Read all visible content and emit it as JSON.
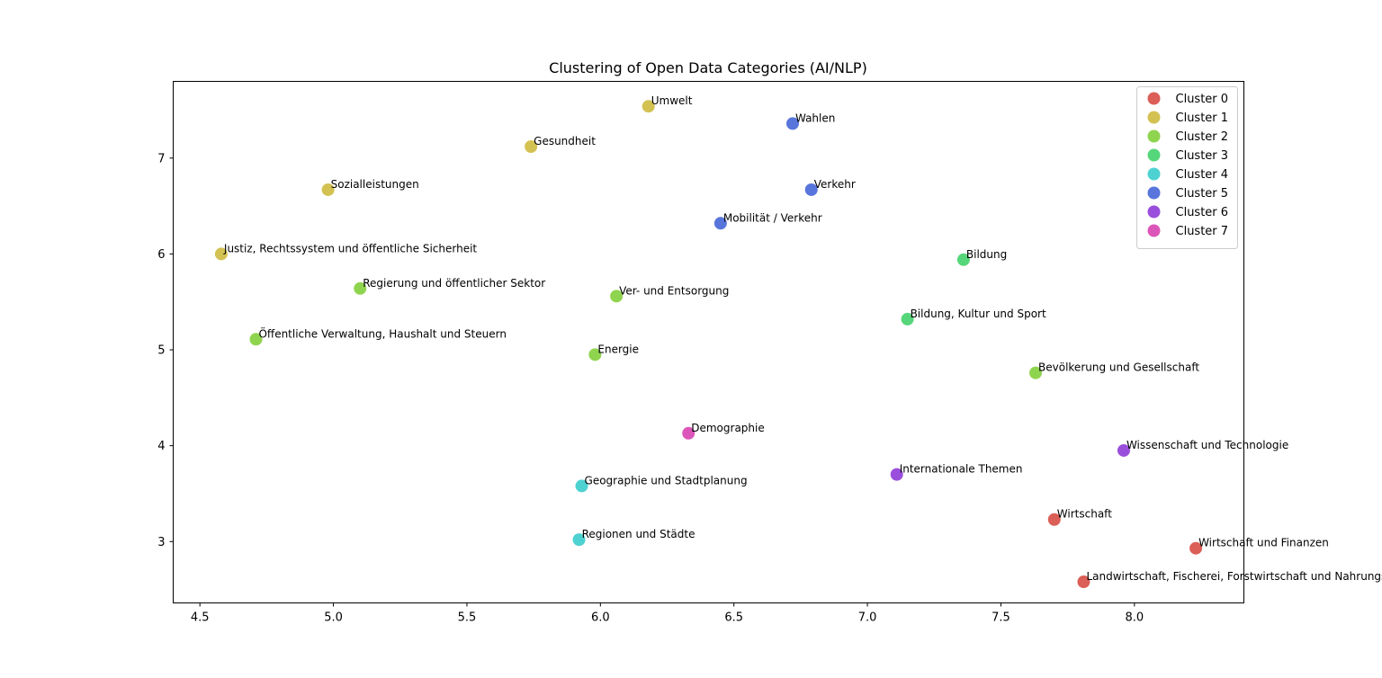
{
  "chart_data": {
    "type": "scatter",
    "title": "Clustering of Open Data Categories (AI/NLP)",
    "xlabel": "",
    "ylabel": "",
    "xlim": [
      4.4,
      8.41
    ],
    "ylim": [
      2.36,
      7.8
    ],
    "xticks": [
      4.5,
      5.0,
      5.5,
      6.0,
      6.5,
      7.0,
      7.5,
      8.0
    ],
    "xtick_labels": [
      "4.5",
      "5.0",
      "5.5",
      "6.0",
      "6.5",
      "7.0",
      "7.5",
      "8.0"
    ],
    "yticks": [
      3,
      4,
      5,
      6,
      7
    ],
    "ytick_labels": [
      "3",
      "4",
      "5",
      "6",
      "7"
    ],
    "grid": false,
    "legend_position": "top-right",
    "series": [
      {
        "name": "Cluster 0",
        "color": "#db5f57",
        "points": [
          {
            "x": 7.7,
            "y": 3.23,
            "label": "Wirtschaft"
          },
          {
            "x": 8.23,
            "y": 2.93,
            "label": "Wirtschaft und Finanzen"
          },
          {
            "x": 7.81,
            "y": 2.58,
            "label": "Landwirtschaft, Fischerei, Forstwirtschaft und Nahrungsmittel"
          }
        ]
      },
      {
        "name": "Cluster 1",
        "color": "#d3c152",
        "points": [
          {
            "x": 6.18,
            "y": 7.54,
            "label": "Umwelt"
          },
          {
            "x": 5.74,
            "y": 7.12,
            "label": "Gesundheit"
          },
          {
            "x": 4.98,
            "y": 6.67,
            "label": "Sozialleistungen"
          },
          {
            "x": 4.58,
            "y": 6.0,
            "label": "Justiz, Rechtssystem und öffentliche Sicherheit"
          }
        ]
      },
      {
        "name": "Cluster 2",
        "color": "#8fd44f",
        "points": [
          {
            "x": 5.1,
            "y": 5.64,
            "label": "Regierung und öffentlicher Sektor"
          },
          {
            "x": 6.06,
            "y": 5.56,
            "label": "Ver- und Entsorgung"
          },
          {
            "x": 4.71,
            "y": 5.11,
            "label": "Öffentliche Verwaltung, Haushalt und Steuern"
          },
          {
            "x": 5.98,
            "y": 4.95,
            "label": "Energie"
          },
          {
            "x": 7.63,
            "y": 4.76,
            "label": "Bevölkerung und Gesellschaft"
          }
        ]
      },
      {
        "name": "Cluster 3",
        "color": "#56d67a",
        "points": [
          {
            "x": 7.36,
            "y": 5.94,
            "label": "Bildung"
          },
          {
            "x": 7.15,
            "y": 5.32,
            "label": "Bildung, Kultur und Sport"
          }
        ]
      },
      {
        "name": "Cluster 4",
        "color": "#4ed1d1",
        "points": [
          {
            "x": 5.93,
            "y": 3.58,
            "label": "Geographie und Stadtplanung"
          },
          {
            "x": 5.92,
            "y": 3.02,
            "label": "Regionen und Städte"
          }
        ]
      },
      {
        "name": "Cluster 5",
        "color": "#5875db",
        "points": [
          {
            "x": 6.72,
            "y": 7.36,
            "label": "Wahlen"
          },
          {
            "x": 6.79,
            "y": 6.67,
            "label": "Verkehr"
          },
          {
            "x": 6.45,
            "y": 6.32,
            "label": "Mobilität / Verkehr"
          }
        ]
      },
      {
        "name": "Cluster 6",
        "color": "#9a4fdc",
        "points": [
          {
            "x": 7.96,
            "y": 3.95,
            "label": "Wissenschaft und Technologie"
          },
          {
            "x": 7.11,
            "y": 3.7,
            "label": "Internationale Themen"
          }
        ]
      },
      {
        "name": "Cluster 7",
        "color": "#dc55b8",
        "points": [
          {
            "x": 6.33,
            "y": 4.13,
            "label": "Demographie"
          }
        ]
      }
    ]
  }
}
